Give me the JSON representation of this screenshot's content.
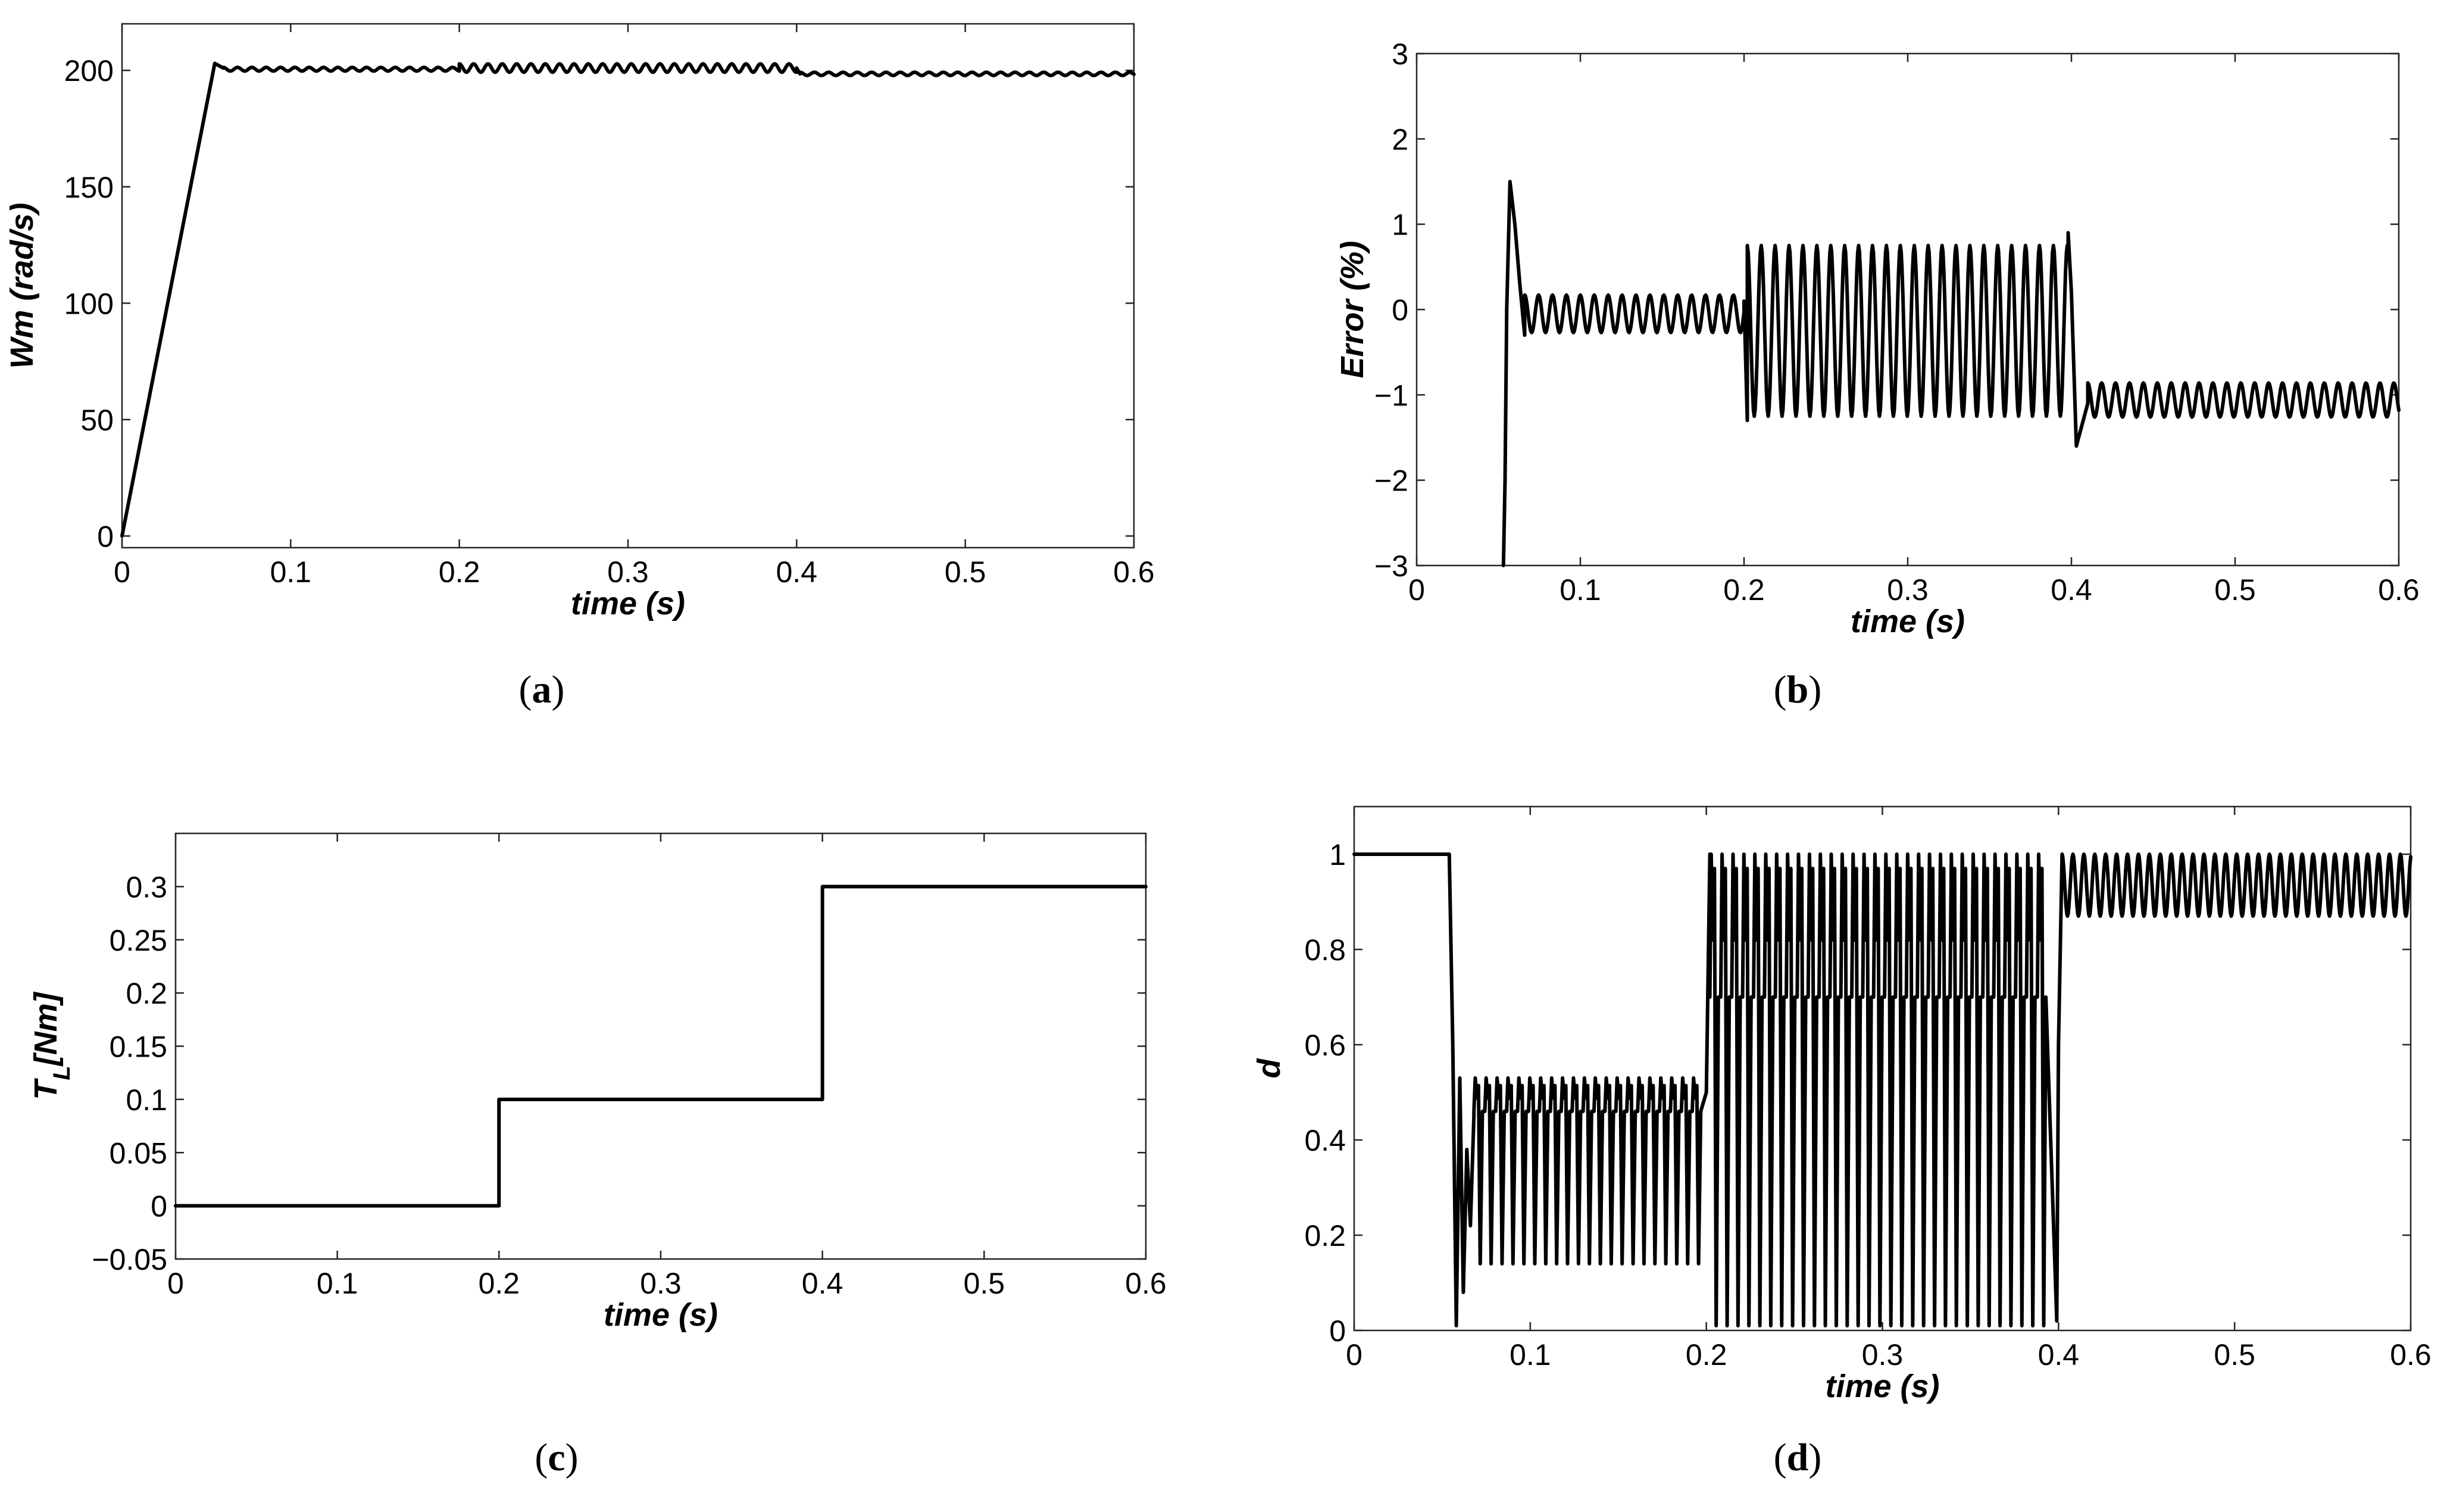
{
  "chart_data": [
    {
      "id": "a",
      "type": "line",
      "caption_letter": "a",
      "xlabel": "time (s)",
      "ylabel": "Wm (rad/s)",
      "xlim": [
        0,
        0.6
      ],
      "ylim": [
        -5,
        220
      ],
      "xticks": [
        0,
        0.1,
        0.2,
        0.3,
        0.4,
        0.5,
        0.6
      ],
      "xtick_labels": [
        "0",
        "0.1",
        "0.2",
        "0.3",
        "0.4",
        "0.5",
        "0.6"
      ],
      "yticks": [
        0,
        50,
        100,
        150,
        200
      ],
      "ytick_labels": [
        "0",
        "50",
        "100",
        "150",
        "200"
      ],
      "grid": false,
      "series": [
        {
          "segments": [
            {
              "kind": "points",
              "points": [
                [
                  0,
                  0
                ],
                [
                  0.055,
                  203
                ],
                [
                  0.06,
                  201
                ]
              ]
            },
            {
              "kind": "osc",
              "t0": 0.06,
              "t1": 0.2,
              "center": 200.5,
              "amp": 0.8,
              "period": 0.0085
            },
            {
              "kind": "osc",
              "t0": 0.2,
              "t1": 0.4,
              "center": 201,
              "amp": 1.8,
              "period": 0.0085
            },
            {
              "kind": "points",
              "points": [
                [
                  0.4,
                  201
                ],
                [
                  0.402,
                  198.5
                ]
              ]
            },
            {
              "kind": "osc",
              "t0": 0.402,
              "t1": 0.6,
              "center": 198.5,
              "amp": 0.7,
              "period": 0.0085
            }
          ]
        }
      ]
    },
    {
      "id": "b",
      "type": "line",
      "caption_letter": "b",
      "xlabel": "time (s)",
      "ylabel": "Error (%)",
      "xlim": [
        0,
        0.6
      ],
      "ylim": [
        -3,
        3
      ],
      "xticks": [
        0,
        0.1,
        0.2,
        0.3,
        0.4,
        0.5,
        0.6
      ],
      "xtick_labels": [
        "0",
        "0.1",
        "0.2",
        "0.3",
        "0.4",
        "0.5",
        "0.6"
      ],
      "yticks": [
        -3,
        -2,
        -1,
        0,
        1,
        2,
        3
      ],
      "ytick_labels": [
        "−3",
        "−2",
        "−1",
        "0",
        "1",
        "2",
        "3"
      ],
      "grid": false,
      "series": [
        {
          "segments": [
            {
              "kind": "points",
              "points": [
                [
                  0.053,
                  -3
                ],
                [
                  0.054,
                  -2
                ],
                [
                  0.055,
                  0
                ],
                [
                  0.057,
                  1.5
                ],
                [
                  0.06,
                  1.0
                ],
                [
                  0.063,
                  0.3
                ],
                [
                  0.066,
                  -0.3
                ]
              ]
            },
            {
              "kind": "osc",
              "t0": 0.066,
              "t1": 0.2,
              "center": -0.05,
              "amp": 0.22,
              "period": 0.0085
            },
            {
              "kind": "points",
              "points": [
                [
                  0.2,
                  0.1
                ],
                [
                  0.202,
                  -1.3
                ]
              ]
            },
            {
              "kind": "osc",
              "t0": 0.202,
              "t1": 0.398,
              "center": -0.25,
              "amp": 1.0,
              "period": 0.0085
            },
            {
              "kind": "points",
              "points": [
                [
                  0.398,
                  0.9
                ],
                [
                  0.4,
                  0.2
                ],
                [
                  0.403,
                  -1.6
                ],
                [
                  0.41,
                  -1.1
                ]
              ]
            },
            {
              "kind": "osc",
              "t0": 0.41,
              "t1": 0.6,
              "center": -1.06,
              "amp": 0.2,
              "period": 0.0085
            }
          ]
        }
      ]
    },
    {
      "id": "c",
      "type": "line",
      "caption_letter": "c",
      "xlabel": "time (s)",
      "ylabel": "T_L [Nm]",
      "xlim": [
        0,
        0.6
      ],
      "ylim": [
        -0.05,
        0.35
      ],
      "xticks": [
        0,
        0.1,
        0.2,
        0.3,
        0.4,
        0.5,
        0.6
      ],
      "xtick_labels": [
        "0",
        "0.1",
        "0.2",
        "0.3",
        "0.4",
        "0.5",
        "0.6"
      ],
      "yticks": [
        -0.05,
        0,
        0.05,
        0.1,
        0.15,
        0.2,
        0.25,
        0.3
      ],
      "ytick_labels": [
        "−0.05",
        "0",
        "0.05",
        "0.1",
        "0.15",
        "0.2",
        "0.25",
        "0.3"
      ],
      "grid": false,
      "series": [
        {
          "segments": [
            {
              "kind": "points",
              "points": [
                [
                  0,
                  0
                ],
                [
                  0.2,
                  0
                ],
                [
                  0.2,
                  0.1
                ],
                [
                  0.4,
                  0.1
                ],
                [
                  0.4,
                  0.3
                ],
                [
                  0.6,
                  0.3
                ]
              ]
            }
          ]
        }
      ]
    },
    {
      "id": "d",
      "type": "line",
      "caption_letter": "d",
      "xlabel": "time (s)",
      "ylabel": "d",
      "xlim": [
        0,
        0.6
      ],
      "ylim": [
        0,
        1.1
      ],
      "xticks": [
        0,
        0.1,
        0.2,
        0.3,
        0.4,
        0.5,
        0.6
      ],
      "xtick_labels": [
        "0",
        "0.1",
        "0.2",
        "0.3",
        "0.4",
        "0.5",
        "0.6"
      ],
      "yticks": [
        0,
        0.2,
        0.4,
        0.6,
        0.8,
        1
      ],
      "ytick_labels": [
        "0",
        "0.2",
        "0.4",
        "0.6",
        "0.8",
        "1"
      ],
      "grid": false,
      "series": [
        {
          "segments": [
            {
              "kind": "points",
              "points": [
                [
                  0,
                  1
                ],
                [
                  0.054,
                  1
                ],
                [
                  0.056,
                  0.6
                ],
                [
                  0.058,
                  0.01
                ],
                [
                  0.06,
                  0.53
                ],
                [
                  0.062,
                  0.08
                ],
                [
                  0.064,
                  0.38
                ],
                [
                  0.066,
                  0.22
                ],
                [
                  0.068,
                  0.45
                ]
              ]
            },
            {
              "kind": "pwm",
              "t0": 0.068,
              "t1": 0.2,
              "high": 0.53,
              "mid": 0.46,
              "low": 0.14,
              "period": 0.0062
            },
            {
              "kind": "points",
              "points": [
                [
                  0.2,
                  0.5
                ],
                [
                  0.202,
                  1
                ]
              ]
            },
            {
              "kind": "pwm",
              "t0": 0.202,
              "t1": 0.399,
              "high": 1.0,
              "mid": 0.7,
              "low": 0.01,
              "period": 0.0062
            },
            {
              "kind": "points",
              "points": [
                [
                  0.399,
                  0.02
                ],
                [
                  0.4,
                  0.6
                ],
                [
                  0.402,
                  1
                ]
              ]
            },
            {
              "kind": "osc",
              "t0": 0.402,
              "t1": 0.6,
              "center": 0.935,
              "amp": 0.065,
              "period": 0.0062
            }
          ]
        }
      ]
    }
  ]
}
